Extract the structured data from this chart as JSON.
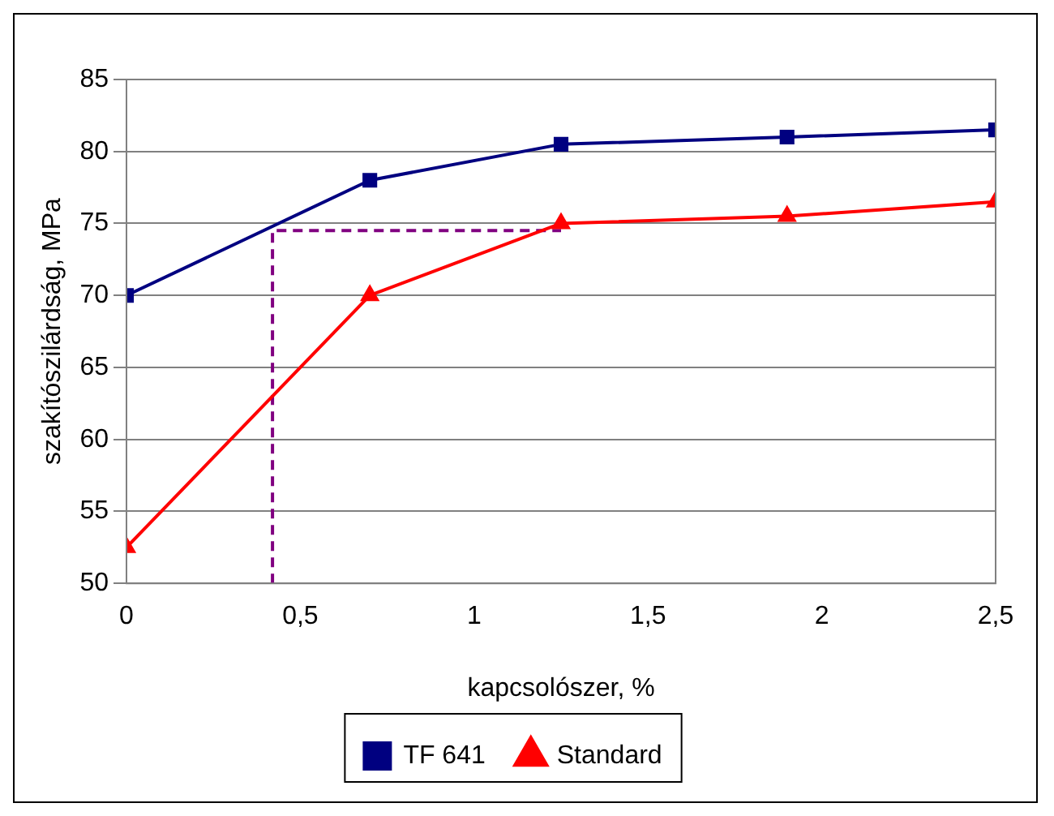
{
  "chart_data": {
    "type": "line",
    "xlabel": "kapcsolószer, %",
    "ylabel": "szakítószilárdság, MPa",
    "xlim": [
      0,
      2.5
    ],
    "xticks": [
      0,
      {
        "value": 0.5,
        "label": "0,5"
      },
      1,
      {
        "value": 1.5,
        "label": "1,5"
      },
      2,
      {
        "value": 2.5,
        "label": "2,5"
      }
    ],
    "ylim": [
      50,
      85
    ],
    "yticks": [
      50,
      55,
      60,
      65,
      70,
      75,
      80,
      85
    ],
    "grid": "y",
    "legend": "bottom",
    "series": [
      {
        "name": "TF 641",
        "color": "#000080",
        "marker": "square",
        "x": [
          0,
          0.7,
          1.25,
          1.9,
          2.5
        ],
        "values": [
          70,
          78,
          80.5,
          81,
          81.5
        ]
      },
      {
        "name": "Standard",
        "color": "#ff0000",
        "marker": "triangle",
        "x": [
          0,
          0.7,
          1.25,
          1.9,
          2.5
        ],
        "values": [
          52.5,
          70,
          75,
          75.5,
          76.5
        ]
      },
      {
        "color": "#800080",
        "marker": "none",
        "line_style": "dashed",
        "x": [
          0.42,
          0.42,
          1.25
        ],
        "values": [
          50,
          74.5,
          74.5
        ]
      }
    ]
  }
}
